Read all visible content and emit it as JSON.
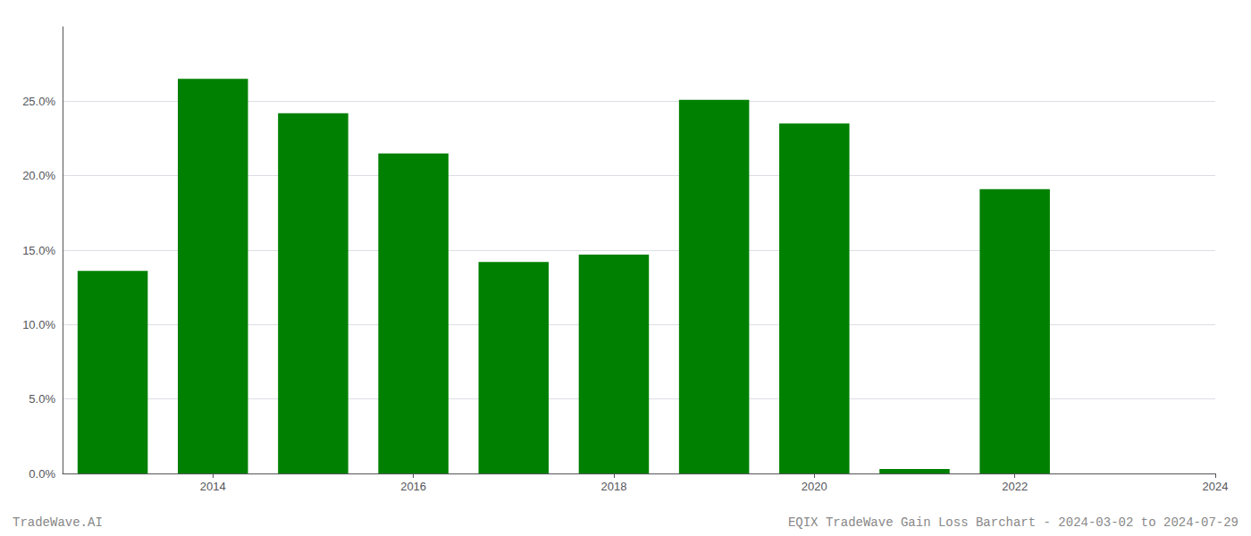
{
  "chart_data": {
    "type": "bar",
    "x": [
      2013,
      2014,
      2015,
      2016,
      2017,
      2018,
      2019,
      2020,
      2021,
      2022,
      2023
    ],
    "values": [
      0.136,
      0.265,
      0.242,
      0.215,
      0.142,
      0.147,
      0.251,
      0.235,
      0.003,
      0.191,
      0.0
    ],
    "color": "#008000",
    "xlim": [
      2012.5,
      2024.0
    ],
    "xticks": [
      2014,
      2016,
      2018,
      2020,
      2022,
      2024
    ],
    "ylim": [
      0,
      0.3
    ],
    "yticks": [
      {
        "value": 0.0,
        "label": "0.0%"
      },
      {
        "value": 0.05,
        "label": "5.0%"
      },
      {
        "value": 0.1,
        "label": "10.0%"
      },
      {
        "value": 0.15,
        "label": "15.0%"
      },
      {
        "value": 0.2,
        "label": "20.0%"
      },
      {
        "value": 0.25,
        "label": "25.0%"
      }
    ],
    "grid": true,
    "annotations": [
      "TradeWave.AI",
      "EQIX TradeWave Gain Loss Barchart - 2024-03-02 to 2024-07-29"
    ]
  }
}
